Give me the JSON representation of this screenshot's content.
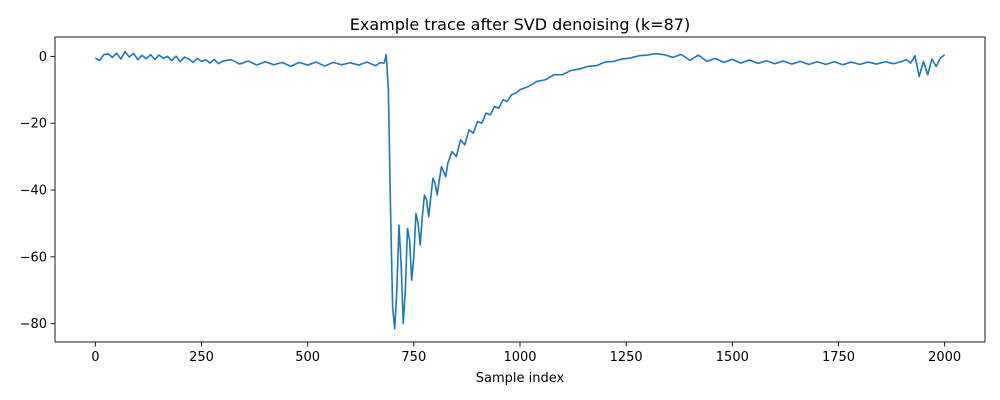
{
  "chart_data": {
    "type": "line",
    "title": "Example trace after SVD denoising (k=87)",
    "xlabel": "Sample index",
    "ylabel": "",
    "xlim": [
      -95,
      2095
    ],
    "ylim": [
      -85.5,
      5.8
    ],
    "xticks": [
      0,
      250,
      500,
      750,
      1000,
      1250,
      1500,
      1750,
      2000
    ],
    "yticks": [
      0,
      -20,
      -40,
      -60,
      -80
    ],
    "grid": false,
    "line_color": "#1f77b4",
    "series": [
      {
        "x": [
          0,
          10,
          20,
          30,
          40,
          50,
          60,
          70,
          80,
          90,
          100,
          110,
          120,
          130,
          140,
          150,
          160,
          170,
          180,
          190,
          200,
          210,
          220,
          230,
          240,
          250,
          260,
          270,
          280,
          290,
          300,
          320,
          340,
          360,
          380,
          400,
          420,
          440,
          460,
          480,
          500,
          520,
          540,
          560,
          580,
          600,
          620,
          640,
          660,
          670,
          680,
          685,
          690,
          695,
          700,
          705,
          710,
          715,
          720,
          725,
          730,
          735,
          740,
          745,
          750,
          755,
          760,
          765,
          770,
          775,
          780,
          785,
          790,
          795,
          800,
          805,
          810,
          815,
          820,
          825,
          830,
          840,
          850,
          860,
          870,
          880,
          890,
          900,
          910,
          920,
          930,
          940,
          950,
          960,
          970,
          980,
          990,
          1000,
          1020,
          1040,
          1060,
          1080,
          1100,
          1120,
          1140,
          1160,
          1180,
          1200,
          1220,
          1240,
          1260,
          1280,
          1300,
          1320,
          1340,
          1360,
          1380,
          1400,
          1420,
          1440,
          1460,
          1480,
          1500,
          1520,
          1540,
          1560,
          1580,
          1600,
          1620,
          1640,
          1660,
          1680,
          1700,
          1720,
          1740,
          1760,
          1780,
          1800,
          1820,
          1840,
          1860,
          1880,
          1900,
          1910,
          1920,
          1930,
          1940,
          1950,
          1960,
          1970,
          1980,
          1990,
          2000
        ],
        "y": [
          -0.5,
          -1.2,
          0.5,
          0.8,
          -0.3,
          1.0,
          -0.8,
          1.4,
          -0.2,
          0.9,
          -1.0,
          0.3,
          -0.7,
          0.5,
          -0.9,
          0.4,
          -0.6,
          0.0,
          -1.3,
          0.1,
          -1.6,
          -0.2,
          -0.8,
          -1.8,
          -0.6,
          -1.5,
          -1.0,
          -2.0,
          -0.9,
          -2.2,
          -1.4,
          -1.0,
          -2.3,
          -1.4,
          -2.6,
          -1.6,
          -2.5,
          -1.8,
          -3.0,
          -1.8,
          -2.6,
          -1.7,
          -2.9,
          -1.8,
          -2.5,
          -1.9,
          -2.6,
          -1.7,
          -2.8,
          -1.9,
          -2.0,
          0.5,
          -10.0,
          -45.0,
          -75.0,
          -81.5,
          -70.0,
          -50.5,
          -62.0,
          -80.0,
          -70.0,
          -51.5,
          -55.0,
          -67.0,
          -60.0,
          -47.0,
          -50.0,
          -56.5,
          -48.0,
          -41.5,
          -43.0,
          -48.0,
          -42.0,
          -36.5,
          -38.0,
          -41.5,
          -37.0,
          -33.0,
          -34.5,
          -36.0,
          -32.0,
          -28.5,
          -30.0,
          -25.0,
          -26.5,
          -22.0,
          -23.0,
          -19.5,
          -20.0,
          -17.0,
          -17.5,
          -15.0,
          -15.5,
          -13.0,
          -13.5,
          -11.5,
          -11.0,
          -10.0,
          -9.0,
          -7.5,
          -7.0,
          -5.5,
          -5.5,
          -4.2,
          -3.8,
          -3.0,
          -2.8,
          -1.7,
          -1.5,
          -0.8,
          -0.5,
          0.2,
          0.4,
          0.8,
          0.5,
          -0.3,
          0.6,
          -1.2,
          0.4,
          -1.5,
          -0.6,
          -1.8,
          -0.9,
          -2.0,
          -1.1,
          -2.1,
          -1.3,
          -2.2,
          -1.4,
          -2.3,
          -1.5,
          -2.4,
          -1.6,
          -2.4,
          -1.6,
          -2.5,
          -1.7,
          -2.4,
          -1.7,
          -2.3,
          -1.6,
          -2.2,
          -1.5,
          -1.0,
          -2.0,
          0.2,
          -6.0,
          -1.5,
          -5.5,
          -0.8,
          -3.0,
          -0.5,
          0.5
        ]
      }
    ]
  }
}
